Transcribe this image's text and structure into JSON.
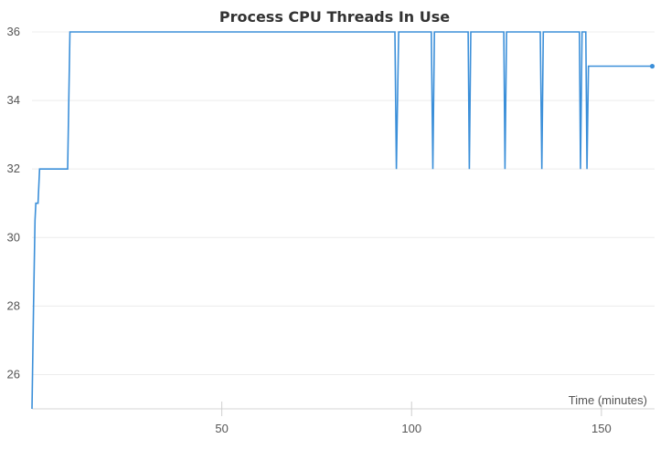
{
  "chart_data": {
    "type": "line",
    "title": "Process CPU Threads In Use",
    "xlabel": "Time (minutes)",
    "ylabel": "",
    "xlim": [
      0,
      164
    ],
    "ylim": [
      25,
      36
    ],
    "x_ticks": [
      50,
      100,
      150
    ],
    "y_ticks": [
      26,
      28,
      30,
      32,
      34,
      36
    ],
    "grid": true,
    "legend": "none",
    "series": [
      {
        "color": "#3b8fd9",
        "x": [
          0,
          0.4,
          0.8,
          1.0,
          1.4,
          1.6,
          2.0,
          9.4,
          10.0,
          95.6,
          96.0,
          96.6,
          105.2,
          105.6,
          106.0,
          114.9,
          115.2,
          115.6,
          124.3,
          124.6,
          125.0,
          133.9,
          134.3,
          134.7,
          144.2,
          144.5,
          144.9,
          145.9,
          146.2,
          146.6,
          147.3,
          163.4
        ],
        "y": [
          25,
          28,
          30.5,
          31,
          31,
          31,
          32,
          32,
          36,
          36,
          32,
          36,
          36,
          32,
          36,
          36,
          32,
          36,
          36,
          32,
          36,
          36,
          32,
          36,
          36,
          32,
          36,
          36,
          32,
          35,
          35,
          35
        ]
      }
    ]
  }
}
